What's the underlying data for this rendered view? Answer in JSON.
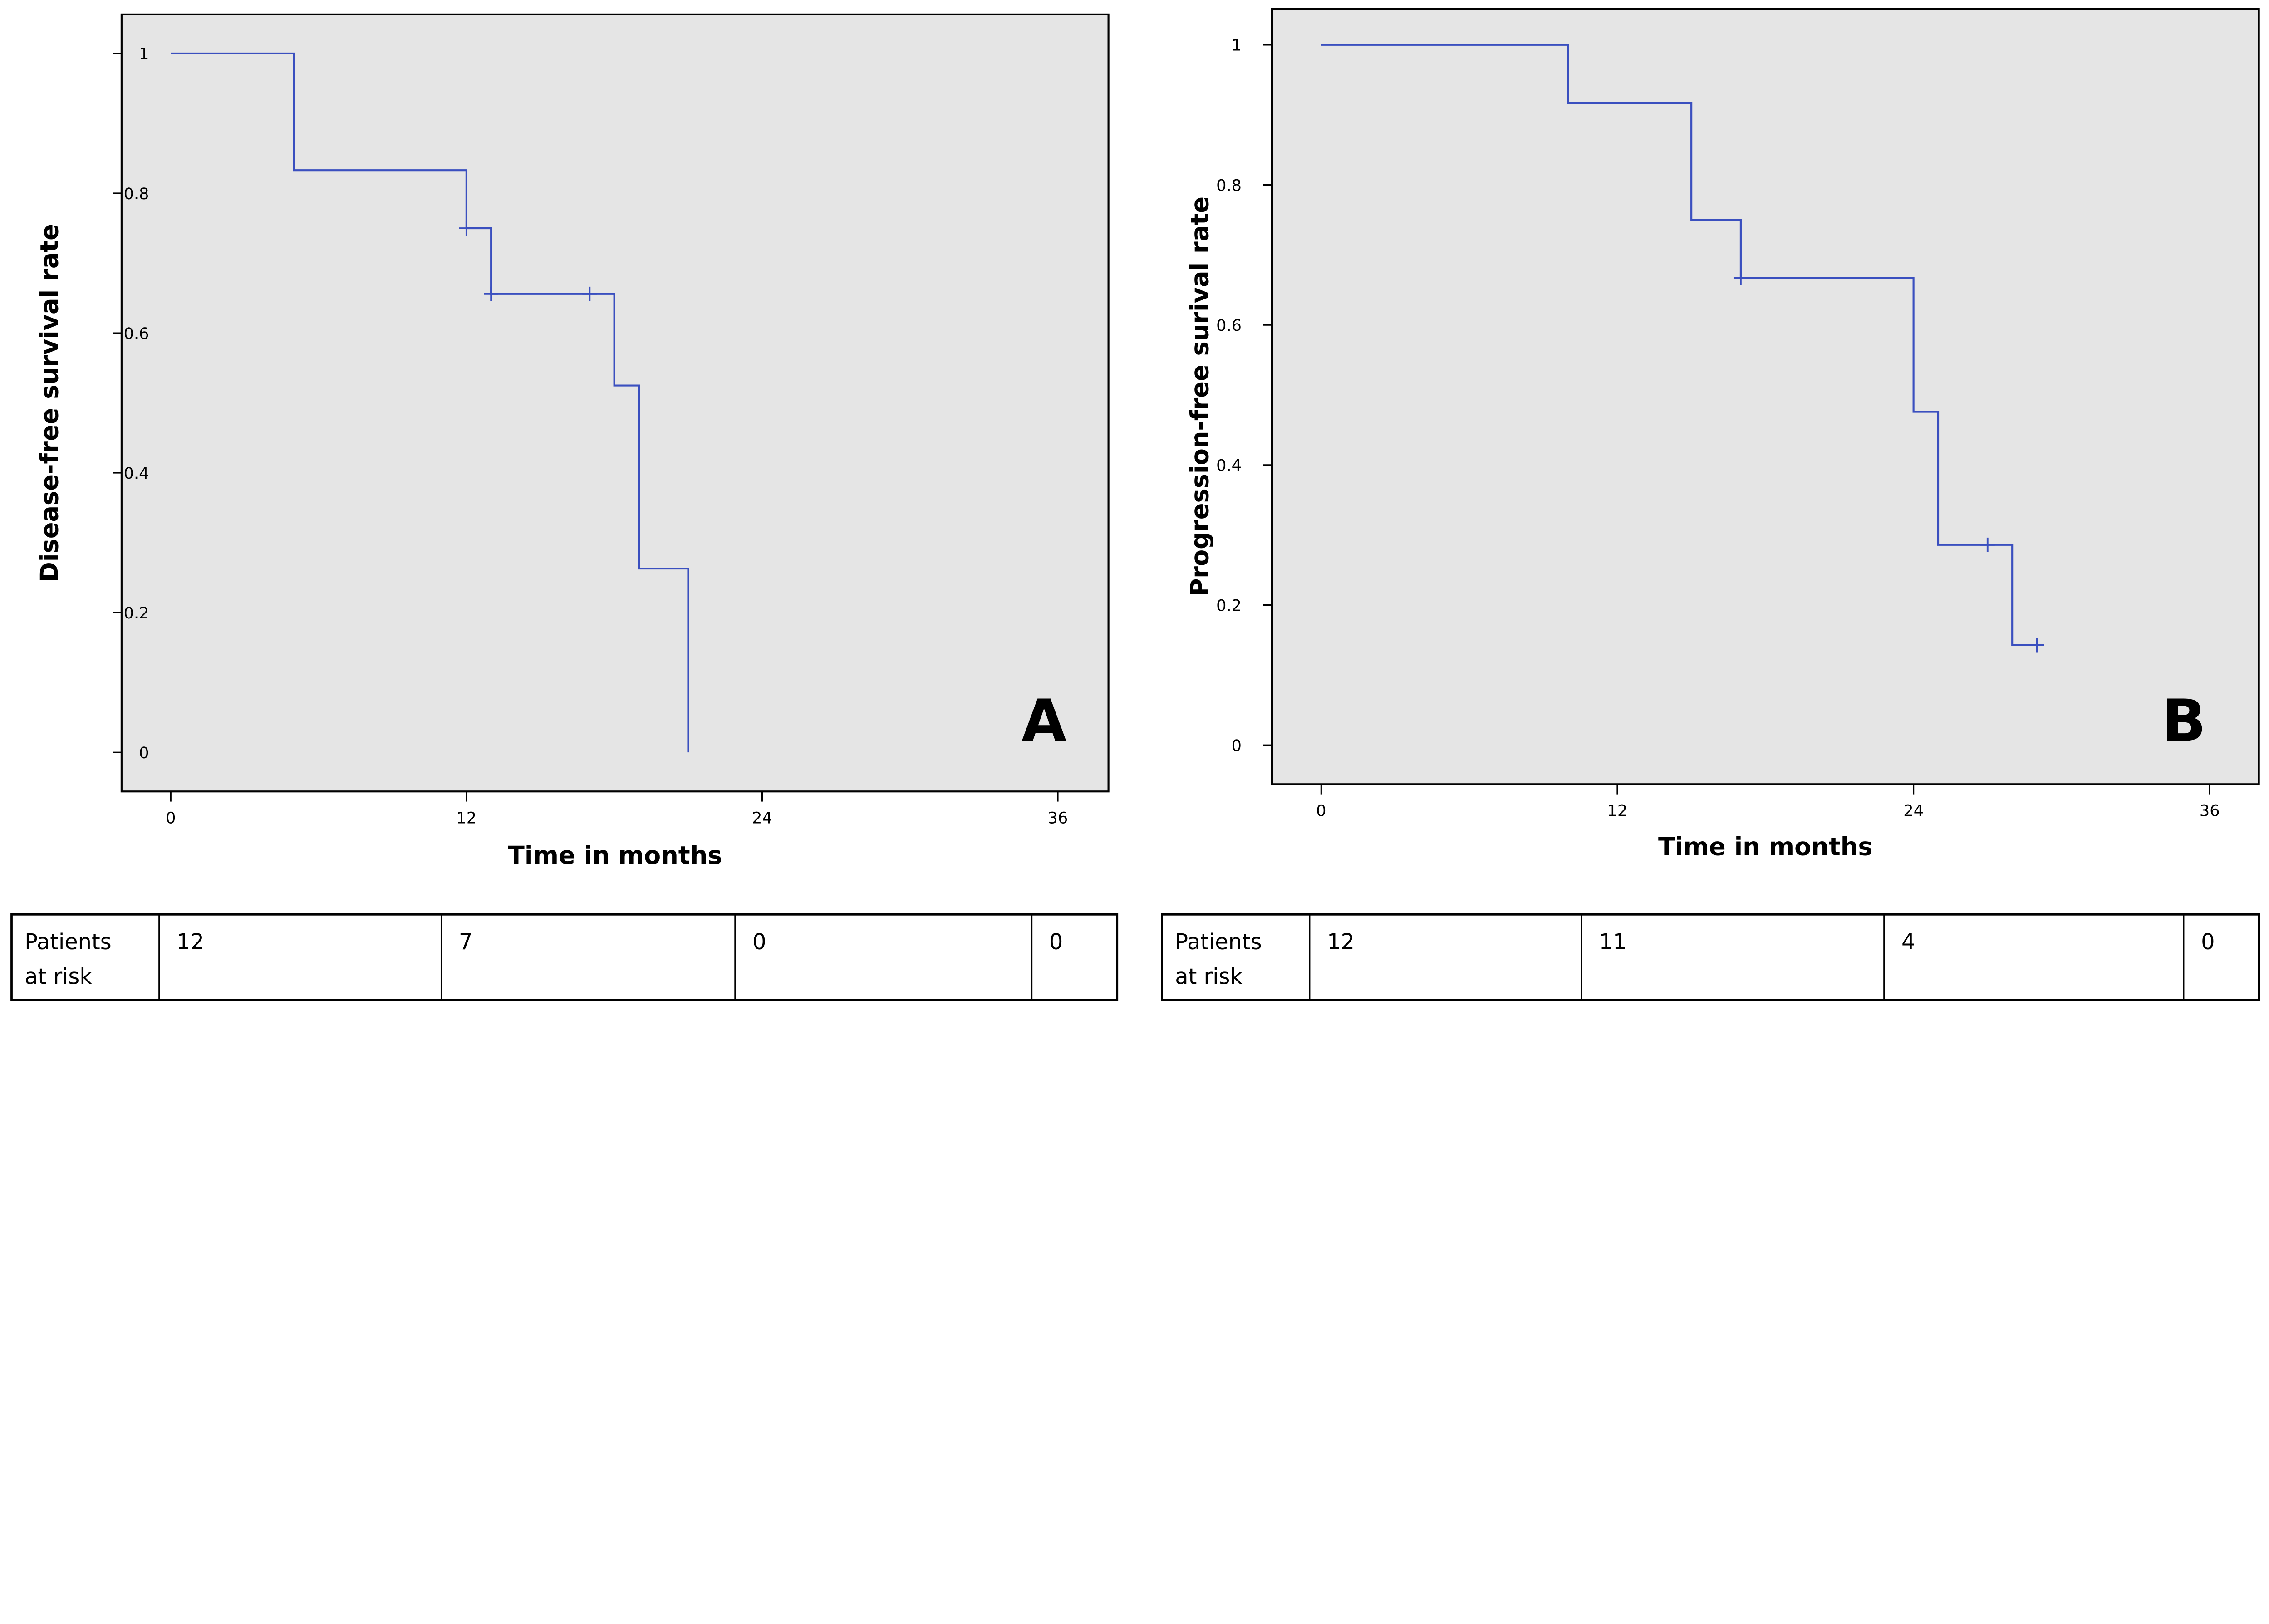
{
  "chart_data": [
    {
      "type": "line",
      "subtype": "kaplan-meier step",
      "panel_label": "A",
      "xlabel": "Time in months",
      "ylabel": "Disease-free survival rate",
      "xlim": [
        0,
        36
      ],
      "ylim": [
        0,
        1
      ],
      "x_ticks": [
        "0",
        "12",
        "24",
        "36"
      ],
      "y_ticks": [
        "0",
        "0.2",
        "0.4",
        "0.6",
        "0.8",
        "1"
      ],
      "grid": false,
      "line_color": "#3a4fbf",
      "background": "#e5e5e5",
      "steps": [
        {
          "x": 0,
          "y": 1
        },
        {
          "x": 5,
          "y": 0.833
        },
        {
          "x": 12,
          "y": 0.75
        },
        {
          "x": 13,
          "y": 0.656
        },
        {
          "x": 18,
          "y": 0.525
        },
        {
          "x": 19,
          "y": 0.263
        },
        {
          "x": 21,
          "y": 0
        }
      ],
      "censored": [
        {
          "x": 12,
          "y": 0.75
        },
        {
          "x": 13,
          "y": 0.656
        },
        {
          "x": 17,
          "y": 0.656
        }
      ],
      "risk_table": {
        "label": "Patients at risk",
        "label_lines": [
          "Patients",
          "at risk"
        ],
        "values": [
          "12",
          "7",
          "0",
          "0"
        ]
      }
    },
    {
      "type": "line",
      "subtype": "kaplan-meier step",
      "panel_label": "B",
      "xlabel": "Time in months",
      "ylabel": "Progression-free surival rate",
      "xlim": [
        0,
        36
      ],
      "ylim": [
        0,
        1
      ],
      "x_ticks": [
        "0",
        "12",
        "24",
        "36"
      ],
      "y_ticks": [
        "0",
        "0.2",
        "0.4",
        "0.6",
        "0.8",
        "1"
      ],
      "grid": false,
      "line_color": "#3a4fbf",
      "background": "#e5e5e5",
      "steps": [
        {
          "x": 0,
          "y": 1
        },
        {
          "x": 10,
          "y": 0.917
        },
        {
          "x": 15,
          "y": 0.75
        },
        {
          "x": 17,
          "y": 0.667
        },
        {
          "x": 24,
          "y": 0.476
        },
        {
          "x": 25,
          "y": 0.286
        },
        {
          "x": 28,
          "y": 0.143
        }
      ],
      "end_x": 29,
      "censored": [
        {
          "x": 17,
          "y": 0.667
        },
        {
          "x": 27,
          "y": 0.286
        },
        {
          "x": 29,
          "y": 0.143
        }
      ],
      "risk_table": {
        "label": "Patients at risk",
        "label_lines": [
          "Patients",
          "at risk"
        ],
        "values": [
          "12",
          "11",
          "4",
          "0"
        ]
      }
    }
  ]
}
